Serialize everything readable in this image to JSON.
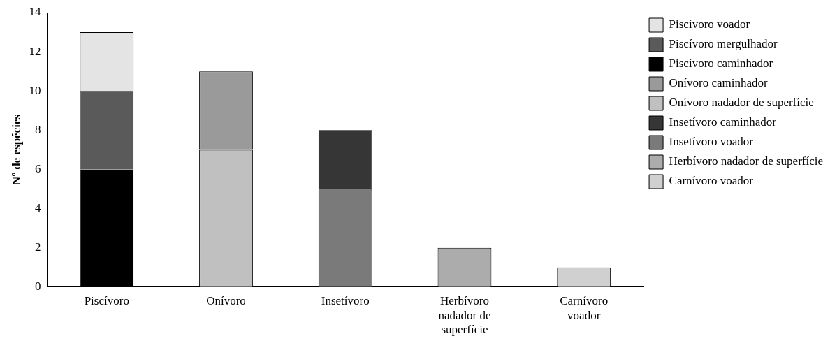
{
  "chart_data": {
    "type": "bar",
    "stacked": true,
    "ylabel": "Nº de espécies",
    "categories": [
      "Piscívoro",
      "Onívoro",
      "Insetívoro",
      "Herbívoro nadador de superfície",
      "Carnívoro voador"
    ],
    "ylim": [
      0,
      14
    ],
    "yticks": [
      0,
      2,
      4,
      6,
      8,
      10,
      12,
      14
    ],
    "grid": false,
    "legend": "right",
    "series": [
      {
        "name": "Piscívoro caminhador",
        "color": "#000000",
        "values": [
          6,
          null,
          null,
          null,
          null
        ]
      },
      {
        "name": "Piscívoro mergulhador",
        "color": "#5a5a5a",
        "values": [
          4,
          null,
          null,
          null,
          null
        ]
      },
      {
        "name": "Piscívoro voador",
        "color": "#e4e4e4",
        "values": [
          3,
          null,
          null,
          null,
          null
        ]
      },
      {
        "name": "Onívoro nadador de superfície",
        "color": "#c0c0c0",
        "values": [
          null,
          7,
          null,
          null,
          null
        ]
      },
      {
        "name": "Onívoro caminhador",
        "color": "#9a9a9a",
        "values": [
          null,
          4,
          null,
          null,
          null
        ]
      },
      {
        "name": "Insetívoro voador",
        "color": "#7a7a7a",
        "values": [
          null,
          null,
          5,
          null,
          null
        ]
      },
      {
        "name": "Insetívoro caminhador",
        "color": "#363636",
        "values": [
          null,
          null,
          3,
          null,
          null
        ]
      },
      {
        "name": "Herbívoro nadador de superfície",
        "color": "#acacac",
        "values": [
          null,
          null,
          null,
          2,
          null
        ]
      },
      {
        "name": "Carnívoro voador",
        "color": "#d0d0d0",
        "values": [
          null,
          null,
          null,
          null,
          1
        ]
      }
    ]
  }
}
